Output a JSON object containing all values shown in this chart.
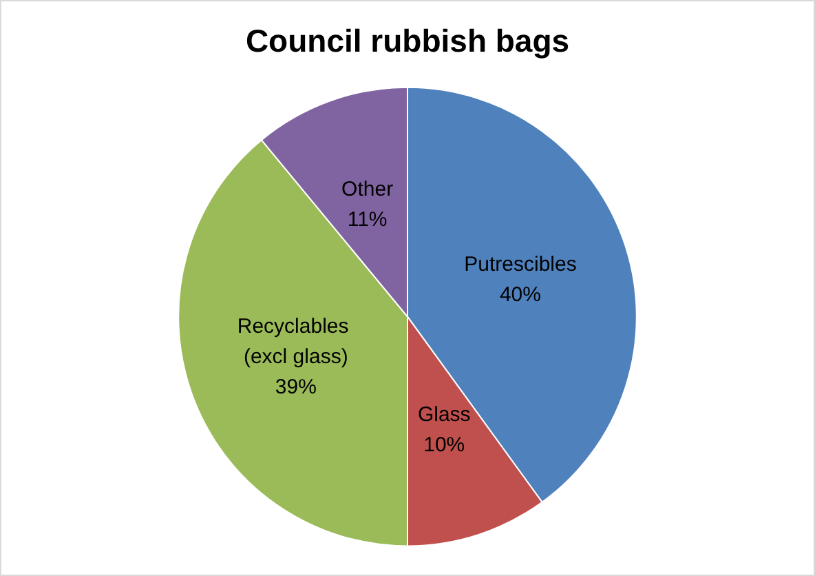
{
  "chart_data": {
    "type": "pie",
    "title": "Council rubbish bags",
    "categories": [
      "Putrescibles",
      "Glass",
      "Recyclables (excl glass)",
      "Other"
    ],
    "values": [
      40,
      10,
      39,
      11
    ],
    "value_labels": [
      "40%",
      "10%",
      "39%",
      "11%"
    ],
    "colors": [
      "#4f81bd",
      "#c0504d",
      "#9bbb59",
      "#8064a2"
    ],
    "legend": false
  }
}
